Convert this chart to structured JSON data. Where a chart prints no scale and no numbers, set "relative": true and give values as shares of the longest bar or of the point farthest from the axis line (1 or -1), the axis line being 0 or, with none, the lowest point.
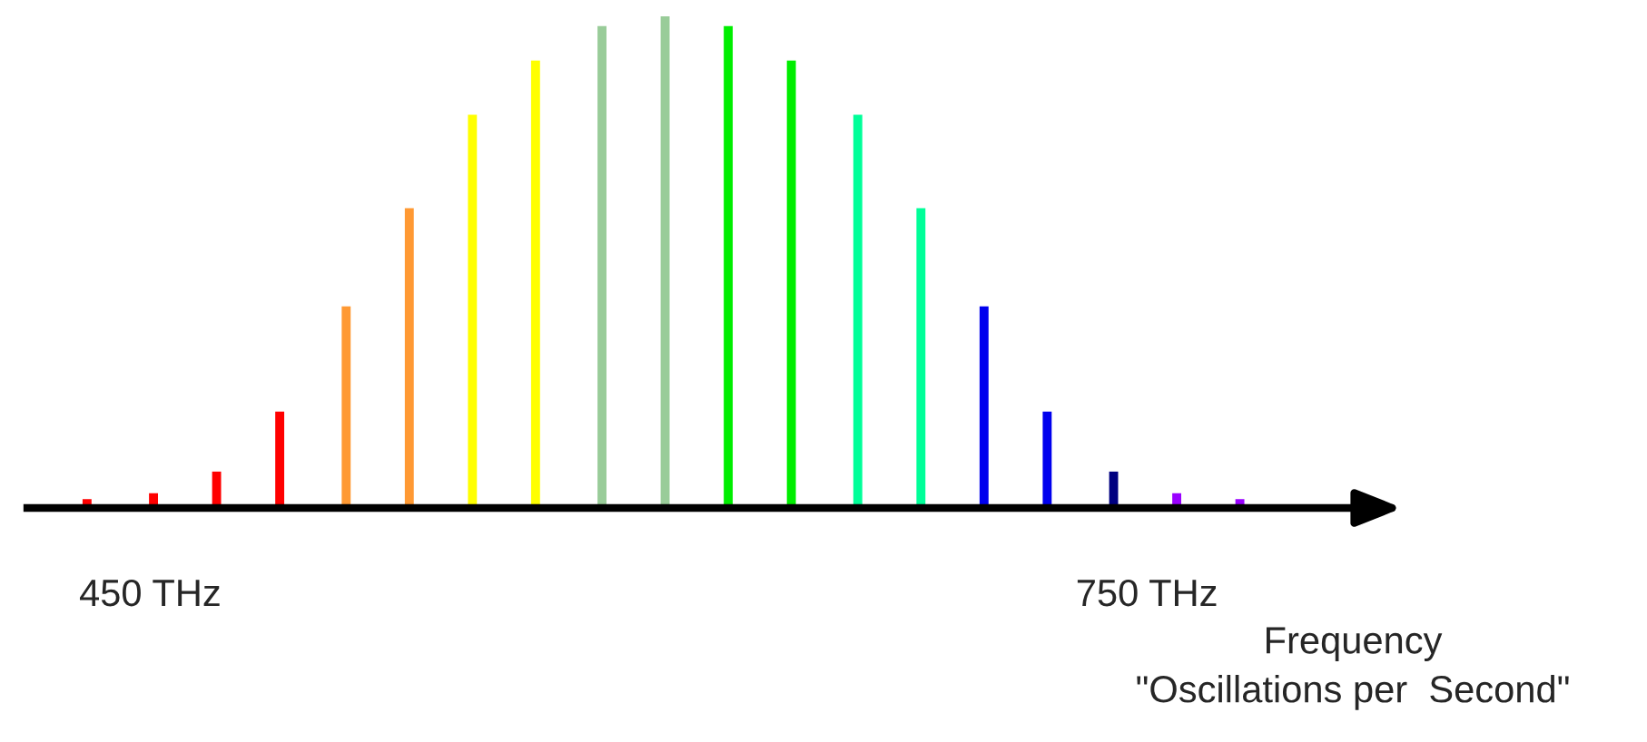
{
  "chart_data": {
    "type": "bar",
    "relative": true,
    "xlabel": "Frequency\n\"Oscillations per  Second\"",
    "x": [
      431,
      451,
      470,
      489,
      509,
      528,
      547,
      566,
      586,
      605,
      624,
      643,
      663,
      682,
      701,
      720,
      740,
      759,
      778
    ],
    "values": [
      0.018,
      0.03,
      0.074,
      0.196,
      0.41,
      0.61,
      0.8,
      0.91,
      0.98,
      1,
      0.98,
      0.91,
      0.8,
      0.61,
      0.41,
      0.196,
      0.074,
      0.03,
      0.018
    ],
    "colors": [
      "#ff0000",
      "#ff0000",
      "#ff0000",
      "#ff0000",
      "#ff9933",
      "#ff9933",
      "#ffff00",
      "#ffff00",
      "#99cc99",
      "#99cc99",
      "#00ee00",
      "#00ee00",
      "#00ff99",
      "#00ff99",
      "#0000ee",
      "#0000ee",
      "#000080",
      "#9900ff",
      "#9900ff"
    ],
    "xlim": [
      413,
      812
    ],
    "xticks": [
      {
        "value": 450,
        "label": "450 THz"
      },
      {
        "value": 750,
        "label": "750 THz"
      }
    ],
    "grid": false,
    "legend": false
  }
}
